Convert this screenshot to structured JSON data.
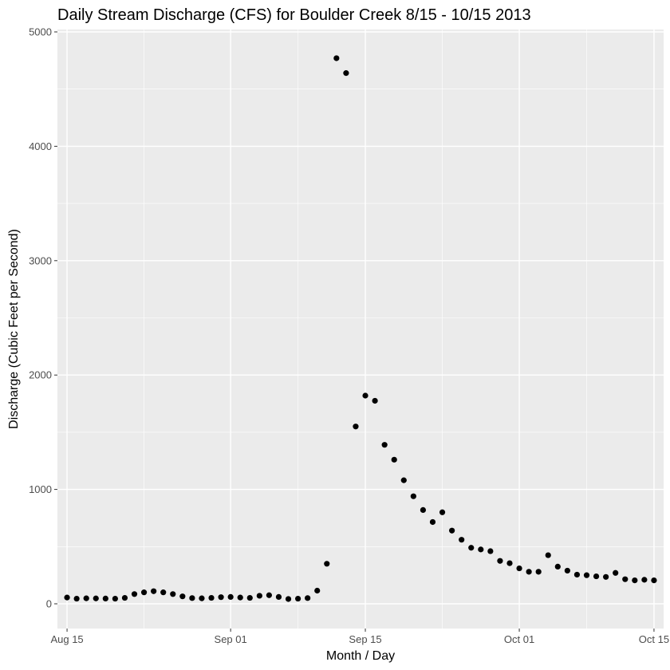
{
  "chart_data": {
    "type": "scatter",
    "title": "Daily Stream Discharge (CFS) for Boulder Creek 8/15 - 10/15 2013",
    "xlabel": "Month / Day",
    "ylabel": "Discharge (Cubic Feet per Second)",
    "x_ticks": [
      "Aug 15",
      "Sep 01",
      "Sep 15",
      "Oct 01",
      "Oct 15"
    ],
    "y_ticks": [
      "0",
      "1000",
      "2000",
      "3000",
      "4000",
      "5000"
    ],
    "xlim": [
      "2013-08-14",
      "2013-10-16"
    ],
    "ylim": [
      -200,
      5000
    ],
    "grid": true,
    "series": [
      {
        "x": [
          "2013-08-15",
          "2013-08-16",
          "2013-08-17",
          "2013-08-18",
          "2013-08-19",
          "2013-08-20",
          "2013-08-21",
          "2013-08-22",
          "2013-08-23",
          "2013-08-24",
          "2013-08-25",
          "2013-08-26",
          "2013-08-27",
          "2013-08-28",
          "2013-08-29",
          "2013-08-30",
          "2013-08-31",
          "2013-09-01",
          "2013-09-02",
          "2013-09-03",
          "2013-09-04",
          "2013-09-05",
          "2013-09-06",
          "2013-09-07",
          "2013-09-08",
          "2013-09-09",
          "2013-09-10",
          "2013-09-11",
          "2013-09-12",
          "2013-09-13",
          "2013-09-14",
          "2013-09-15",
          "2013-09-16",
          "2013-09-17",
          "2013-09-18",
          "2013-09-19",
          "2013-09-20",
          "2013-09-21",
          "2013-09-22",
          "2013-09-23",
          "2013-09-24",
          "2013-09-25",
          "2013-09-26",
          "2013-09-27",
          "2013-09-28",
          "2013-09-29",
          "2013-09-30",
          "2013-10-01",
          "2013-10-02",
          "2013-10-03",
          "2013-10-04",
          "2013-10-05",
          "2013-10-06",
          "2013-10-07",
          "2013-10-08",
          "2013-10-09",
          "2013-10-10",
          "2013-10-11",
          "2013-10-12",
          "2013-10-13",
          "2013-10-14",
          "2013-10-15"
        ],
        "y": [
          55,
          45,
          48,
          47,
          46,
          45,
          52,
          85,
          100,
          110,
          100,
          85,
          65,
          50,
          48,
          52,
          58,
          60,
          55,
          52,
          70,
          75,
          60,
          42,
          45,
          50,
          115,
          350,
          4770,
          4640,
          1550,
          1820,
          1775,
          1390,
          1260,
          1080,
          940,
          820,
          715,
          800,
          640,
          560,
          490,
          475,
          460,
          375,
          355,
          310,
          280,
          280,
          425,
          325,
          290,
          255,
          250,
          240,
          235,
          270,
          215,
          205,
          210,
          205
        ]
      }
    ]
  },
  "colors": {
    "panel_background": "#ebebeb",
    "grid_major": "#ffffff",
    "point": "#000000",
    "tick_text": "#4d4d4d"
  }
}
